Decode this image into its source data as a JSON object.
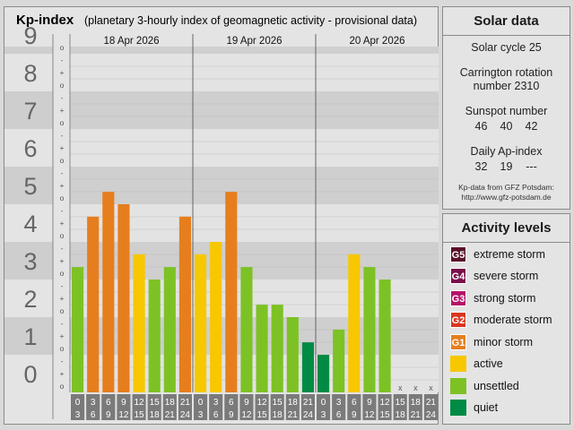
{
  "kp_panel": {
    "title": "Kp-index",
    "subtitle": "(planetary 3-hourly index of geomagnetic activity - provisional data)"
  },
  "chart_data": {
    "type": "bar",
    "y_labels": [
      "0",
      "1",
      "2",
      "3",
      "4",
      "5",
      "6",
      "7",
      "8",
      "9"
    ],
    "y_sub_labels": [
      "o",
      "+",
      "-"
    ],
    "ylim": [
      0,
      9.33
    ],
    "days": [
      "18 Apr 2026",
      "19 Apr 2026",
      "20 Apr 2026"
    ],
    "hour_start": [
      "0",
      "3",
      "6",
      "9",
      "12",
      "15",
      "18",
      "21"
    ],
    "hour_end": [
      "3",
      "6",
      "9",
      "12",
      "15",
      "18",
      "21",
      "24"
    ],
    "missing_marker": "x",
    "values": [
      [
        3.33,
        4.67,
        5.33,
        5.0,
        3.67,
        3.0,
        3.33,
        4.67
      ],
      [
        3.67,
        4.0,
        5.33,
        3.33,
        2.33,
        2.33,
        2.0,
        1.33
      ],
      [
        1.0,
        1.67,
        3.67,
        3.33,
        3.0,
        null,
        null,
        null
      ]
    ],
    "colors": {
      "quiet": "#008b45",
      "unsettled": "#7dc224",
      "active": "#f7c700",
      "minor_storm": "#e67e1e"
    }
  },
  "solar_panel": {
    "title": "Solar data",
    "cycle": "Solar cycle 25",
    "carrington_1": "Carrington rotation",
    "carrington_2": "number 2310",
    "sunspot_label": "Sunspot number",
    "sunspot_values": [
      "46",
      "40",
      "42"
    ],
    "ap_label": "Daily Ap-index",
    "ap_values": [
      "32",
      "19",
      "---"
    ],
    "credit_1": "Kp-data from GFZ Potsdam:",
    "credit_2": "http://www.gfz-potsdam.de"
  },
  "activity_panel": {
    "title": "Activity levels",
    "levels": [
      {
        "code": "G5",
        "label": "extreme storm",
        "color": "#5a0d2a"
      },
      {
        "code": "G4",
        "label": "severe storm",
        "color": "#7a0f4a"
      },
      {
        "code": "G3",
        "label": "strong storm",
        "color": "#b5146a"
      },
      {
        "code": "G2",
        "label": "moderate storm",
        "color": "#d9361e"
      },
      {
        "code": "G1",
        "label": "minor storm",
        "color": "#e67e1e"
      },
      {
        "code": "",
        "label": "active",
        "color": "#f7c700"
      },
      {
        "code": "",
        "label": "unsettled",
        "color": "#7dc224"
      },
      {
        "code": "",
        "label": "quiet",
        "color": "#008b45"
      }
    ]
  }
}
